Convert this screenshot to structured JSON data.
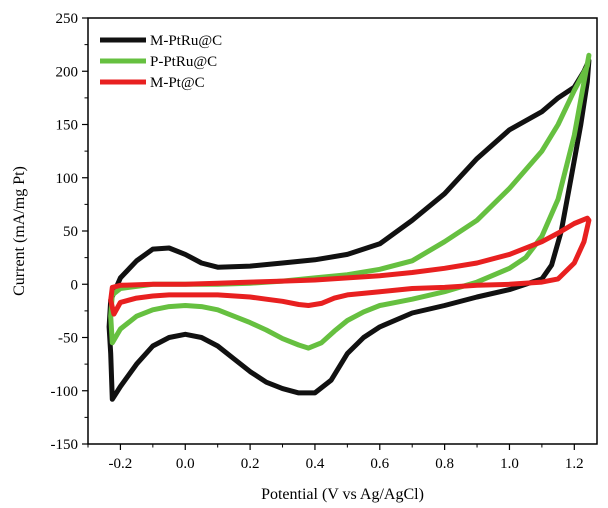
{
  "chart_data": {
    "type": "line",
    "title": "",
    "xlabel": "Potential (V vs Ag/AgCl)",
    "ylabel": "Current (mA/mg Pt)",
    "xlim": [
      -0.3,
      1.27
    ],
    "ylim": [
      -150,
      250
    ],
    "xticks": [
      -0.2,
      0.0,
      0.2,
      0.4,
      0.6,
      0.8,
      1.0,
      1.2
    ],
    "xtick_labels": [
      "-0.2",
      "0.0",
      "0.2",
      "0.4",
      "0.6",
      "0.8",
      "1.0",
      "1.2"
    ],
    "yticks": [
      -150,
      -100,
      -50,
      0,
      50,
      100,
      150,
      200,
      250
    ],
    "ytick_labels": [
      "-150",
      "-100",
      "-50",
      "0",
      "50",
      "100",
      "150",
      "200",
      "250"
    ],
    "grid": false,
    "legend_position": "top-left",
    "series": [
      {
        "name": "M-PtRu@C",
        "color": "#111111",
        "points": [
          [
            -0.23,
            -65
          ],
          [
            -0.225,
            -108
          ],
          [
            -0.2,
            -96
          ],
          [
            -0.15,
            -75
          ],
          [
            -0.1,
            -58
          ],
          [
            -0.05,
            -50
          ],
          [
            0.0,
            -47
          ],
          [
            0.05,
            -50
          ],
          [
            0.1,
            -58
          ],
          [
            0.15,
            -70
          ],
          [
            0.2,
            -82
          ],
          [
            0.25,
            -92
          ],
          [
            0.3,
            -98
          ],
          [
            0.35,
            -102
          ],
          [
            0.4,
            -102
          ],
          [
            0.45,
            -90
          ],
          [
            0.5,
            -65
          ],
          [
            0.55,
            -50
          ],
          [
            0.6,
            -40
          ],
          [
            0.7,
            -27
          ],
          [
            0.8,
            -20
          ],
          [
            0.9,
            -12
          ],
          [
            1.0,
            -5
          ],
          [
            1.05,
            0
          ],
          [
            1.1,
            5
          ],
          [
            1.13,
            18
          ],
          [
            1.16,
            50
          ],
          [
            1.19,
            100
          ],
          [
            1.22,
            150
          ],
          [
            1.24,
            190
          ],
          [
            1.245,
            210
          ],
          [
            1.23,
            200
          ],
          [
            1.2,
            185
          ],
          [
            1.15,
            175
          ],
          [
            1.1,
            162
          ],
          [
            1.0,
            145
          ],
          [
            0.9,
            118
          ],
          [
            0.8,
            85
          ],
          [
            0.7,
            60
          ],
          [
            0.6,
            38
          ],
          [
            0.5,
            28
          ],
          [
            0.4,
            23
          ],
          [
            0.3,
            20
          ],
          [
            0.2,
            17
          ],
          [
            0.1,
            16
          ],
          [
            0.05,
            20
          ],
          [
            0.0,
            28
          ],
          [
            -0.05,
            34
          ],
          [
            -0.1,
            33
          ],
          [
            -0.15,
            22
          ],
          [
            -0.2,
            6
          ],
          [
            -0.23,
            -15
          ],
          [
            -0.235,
            -40
          ],
          [
            -0.23,
            -65
          ]
        ]
      },
      {
        "name": "P-PtRu@C",
        "color": "#66c040",
        "points": [
          [
            -0.23,
            -30
          ],
          [
            -0.225,
            -55
          ],
          [
            -0.2,
            -42
          ],
          [
            -0.15,
            -30
          ],
          [
            -0.1,
            -24
          ],
          [
            -0.05,
            -21
          ],
          [
            0.0,
            -20
          ],
          [
            0.05,
            -21
          ],
          [
            0.1,
            -24
          ],
          [
            0.15,
            -30
          ],
          [
            0.2,
            -36
          ],
          [
            0.25,
            -43
          ],
          [
            0.3,
            -51
          ],
          [
            0.35,
            -57
          ],
          [
            0.38,
            -60
          ],
          [
            0.42,
            -55
          ],
          [
            0.46,
            -44
          ],
          [
            0.5,
            -34
          ],
          [
            0.55,
            -26
          ],
          [
            0.6,
            -20
          ],
          [
            0.7,
            -14
          ],
          [
            0.8,
            -7
          ],
          [
            0.9,
            2
          ],
          [
            1.0,
            15
          ],
          [
            1.05,
            25
          ],
          [
            1.1,
            45
          ],
          [
            1.15,
            80
          ],
          [
            1.2,
            140
          ],
          [
            1.23,
            190
          ],
          [
            1.245,
            215
          ],
          [
            1.24,
            205
          ],
          [
            1.2,
            182
          ],
          [
            1.15,
            150
          ],
          [
            1.1,
            125
          ],
          [
            1.0,
            90
          ],
          [
            0.9,
            60
          ],
          [
            0.8,
            40
          ],
          [
            0.7,
            22
          ],
          [
            0.6,
            14
          ],
          [
            0.5,
            9
          ],
          [
            0.4,
            6
          ],
          [
            0.3,
            3
          ],
          [
            0.2,
            1
          ],
          [
            0.1,
            0
          ],
          [
            0.0,
            0
          ],
          [
            -0.1,
            0
          ],
          [
            -0.2,
            -4
          ],
          [
            -0.225,
            -10
          ],
          [
            -0.23,
            -30
          ]
        ]
      },
      {
        "name": "M-Pt@C",
        "color": "#e82020",
        "points": [
          [
            -0.23,
            -15
          ],
          [
            -0.22,
            -28
          ],
          [
            -0.2,
            -17
          ],
          [
            -0.15,
            -13
          ],
          [
            -0.1,
            -11
          ],
          [
            -0.05,
            -10
          ],
          [
            0.0,
            -10
          ],
          [
            0.1,
            -10
          ],
          [
            0.2,
            -12
          ],
          [
            0.25,
            -14
          ],
          [
            0.3,
            -16
          ],
          [
            0.35,
            -19
          ],
          [
            0.38,
            -20
          ],
          [
            0.42,
            -18
          ],
          [
            0.46,
            -13
          ],
          [
            0.5,
            -10
          ],
          [
            0.6,
            -7
          ],
          [
            0.7,
            -4
          ],
          [
            0.8,
            -3
          ],
          [
            0.9,
            -1
          ],
          [
            1.0,
            0
          ],
          [
            1.1,
            2
          ],
          [
            1.15,
            5
          ],
          [
            1.2,
            20
          ],
          [
            1.23,
            40
          ],
          [
            1.245,
            60
          ],
          [
            1.24,
            62
          ],
          [
            1.2,
            57
          ],
          [
            1.15,
            48
          ],
          [
            1.1,
            40
          ],
          [
            1.0,
            28
          ],
          [
            0.9,
            20
          ],
          [
            0.8,
            15
          ],
          [
            0.7,
            11
          ],
          [
            0.6,
            8
          ],
          [
            0.5,
            6
          ],
          [
            0.4,
            4
          ],
          [
            0.3,
            3
          ],
          [
            0.2,
            2
          ],
          [
            0.1,
            1
          ],
          [
            0.0,
            0
          ],
          [
            -0.1,
            0
          ],
          [
            -0.2,
            -1
          ],
          [
            -0.225,
            -3
          ],
          [
            -0.23,
            -15
          ]
        ]
      }
    ]
  }
}
